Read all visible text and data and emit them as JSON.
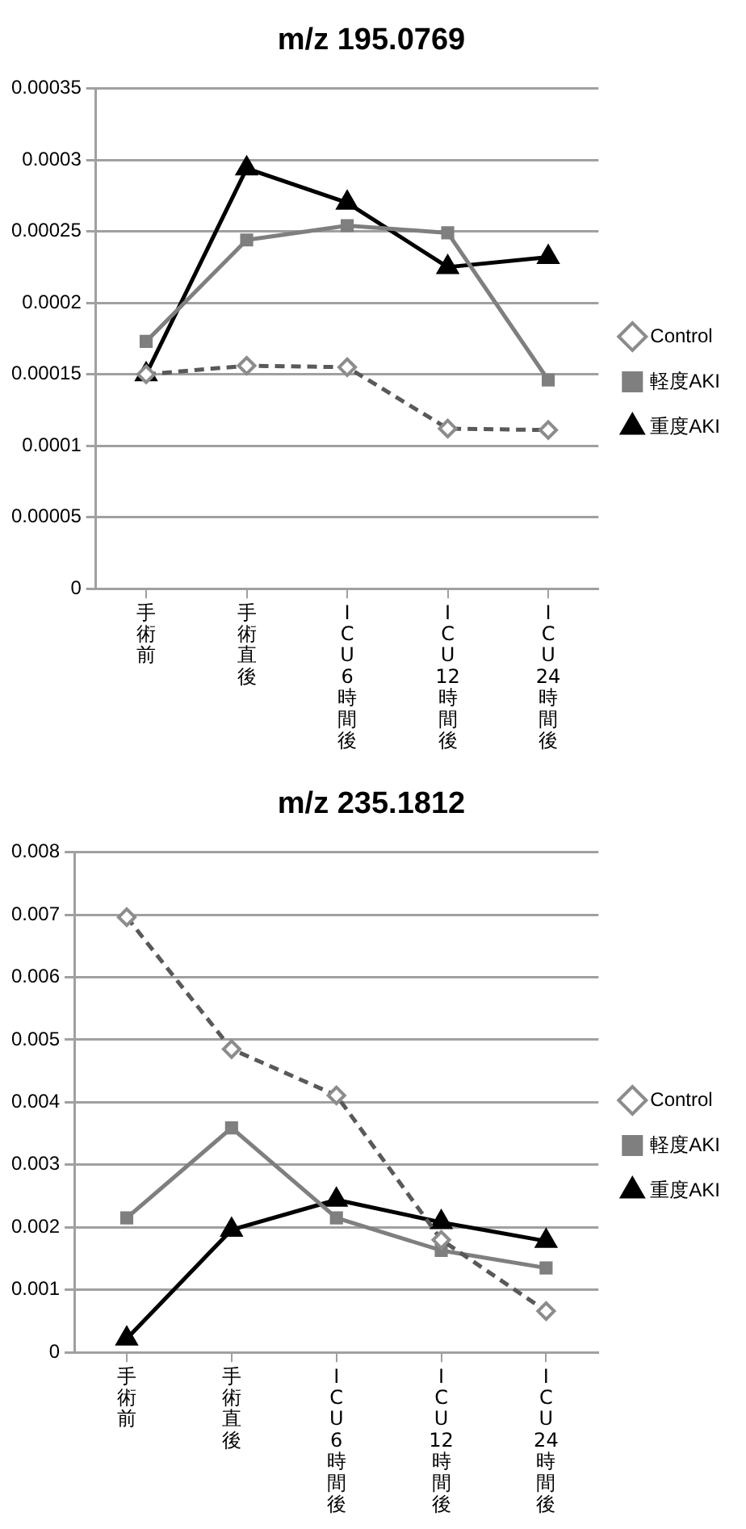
{
  "chart_data": [
    {
      "type": "line",
      "title": "m/z 195.0769",
      "categories": [
        "手術前",
        "手術直後",
        "ICU6時間後",
        "ICU12時間後",
        "ICU24時間後"
      ],
      "series": [
        {
          "name": "Control",
          "color": "#595959",
          "marker": "diamond",
          "line_style": "dashed",
          "values": [
            0.00015,
            0.000156,
            0.000155,
            0.000112,
            0.000111
          ]
        },
        {
          "name": "軽度AKI",
          "color": "#7f7f7f",
          "marker": "square",
          "line_style": "solid",
          "values": [
            0.000173,
            0.000244,
            0.000254,
            0.000249,
            0.000146
          ]
        },
        {
          "name": "重度AKI",
          "color": "#000000",
          "marker": "triangle",
          "line_style": "solid",
          "values": [
            0.00015,
            0.000294,
            0.00027,
            0.000225,
            0.000232
          ]
        }
      ],
      "ylim": [
        0,
        0.00035
      ],
      "yticks": [
        0,
        {
          "value": 5e-05,
          "label": "0.00005"
        },
        0.0001,
        0.00015,
        0.0002,
        0.00025,
        0.0003,
        0.00035
      ],
      "grid": "y",
      "legend": "right"
    },
    {
      "type": "line",
      "title": "m/z 235.1812",
      "categories": [
        "手術前",
        "手術直後",
        "ICU6時間後",
        "ICU12時間後",
        "ICU24時間後"
      ],
      "series": [
        {
          "name": "Control",
          "color": "#595959",
          "marker": "diamond",
          "line_style": "dashed",
          "values": [
            0.00696,
            0.00485,
            0.00411,
            0.0018,
            0.00066
          ]
        },
        {
          "name": "軽度AKI",
          "color": "#7f7f7f",
          "marker": "square",
          "line_style": "solid",
          "values": [
            0.00215,
            0.00359,
            0.00215,
            0.00163,
            0.00135
          ]
        },
        {
          "name": "重度AKI",
          "color": "#000000",
          "marker": "triangle",
          "line_style": "solid",
          "values": [
            0.00022,
            0.00196,
            0.00244,
            0.00208,
            0.00178
          ]
        }
      ],
      "ylim": [
        0,
        0.008
      ],
      "yticks": [
        0,
        0.001,
        0.002,
        0.003,
        0.004,
        0.005,
        0.006,
        0.007,
        0.008
      ],
      "grid": "y",
      "legend": "right"
    }
  ]
}
